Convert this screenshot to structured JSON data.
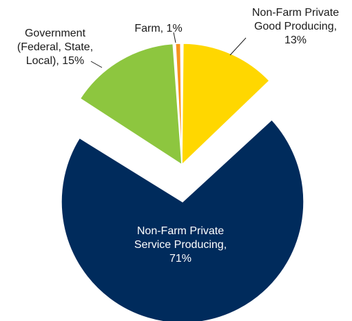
{
  "chart_data": {
    "type": "pie",
    "slices": [
      {
        "name": "Non-Farm Private Good Producing",
        "value": 13,
        "color": "#FFD700",
        "label_lines": [
          "Non-Farm Private",
          "Good Producing,",
          "13%"
        ]
      },
      {
        "name": "Non-Farm Private Service Producing",
        "value": 71,
        "color": "#002B5C",
        "label_lines": [
          "Non-Farm Private",
          "Service Producing,",
          "71%"
        ]
      },
      {
        "name": "Government (Federal, State, Local)",
        "value": 15,
        "color": "#8DC63F",
        "label_lines": [
          "Government",
          "(Federal, State,",
          "Local), 15%"
        ]
      },
      {
        "name": "Farm",
        "value": 1,
        "color": "#F7941D",
        "label_lines": [
          "Farm, 1%"
        ]
      }
    ],
    "start": "12 o'clock",
    "direction": "clockwise",
    "exploded": "Non-Farm Private Service Producing"
  }
}
